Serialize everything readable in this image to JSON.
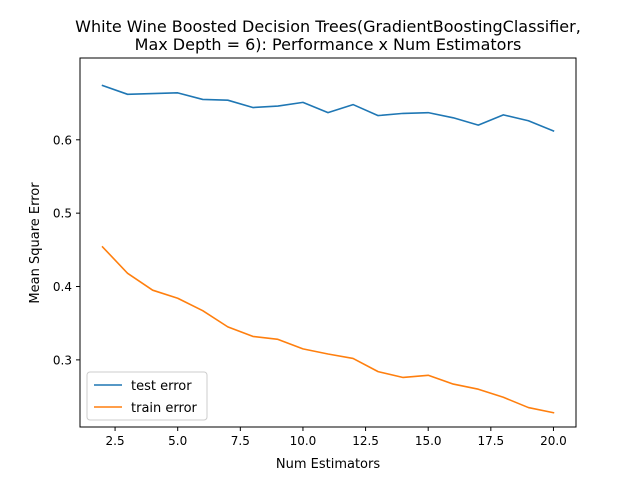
{
  "chart_data": {
    "type": "line",
    "title_line1": "White Wine Boosted Decision Trees(GradientBoostingClassifier,",
    "title_line2": "Max Depth = 6): Performance x Num Estimators",
    "xlabel": "Num Estimators",
    "ylabel": "Mean Square Error",
    "xlim": [
      1.1,
      20.9
    ],
    "ylim": [
      0.2085,
      0.7115
    ],
    "xticks": [
      2.5,
      5.0,
      7.5,
      10.0,
      12.5,
      15.0,
      17.5,
      20.0
    ],
    "xtick_labels": [
      "2.5",
      "5.0",
      "7.5",
      "10.0",
      "12.5",
      "15.0",
      "17.5",
      "20.0"
    ],
    "yticks": [
      0.3,
      0.4,
      0.5,
      0.6
    ],
    "ytick_labels": [
      "0.3",
      "0.4",
      "0.5",
      "0.6"
    ],
    "grid": false,
    "legend_position": "lower-left",
    "x": [
      2,
      3,
      4,
      5,
      6,
      7,
      8,
      9,
      10,
      11,
      12,
      13,
      14,
      15,
      16,
      17,
      18,
      19,
      20
    ],
    "series": [
      {
        "name": "test error",
        "color": "#1f77b4",
        "values": [
          0.674,
          0.662,
          0.663,
          0.664,
          0.655,
          0.654,
          0.644,
          0.646,
          0.651,
          0.637,
          0.648,
          0.633,
          0.636,
          0.637,
          0.63,
          0.62,
          0.634,
          0.626,
          0.612
        ]
      },
      {
        "name": "train error",
        "color": "#ff7f0e",
        "values": [
          0.454,
          0.418,
          0.395,
          0.384,
          0.367,
          0.345,
          0.332,
          0.328,
          0.315,
          0.308,
          0.302,
          0.284,
          0.276,
          0.279,
          0.267,
          0.26,
          0.249,
          0.235,
          0.228
        ]
      }
    ]
  }
}
